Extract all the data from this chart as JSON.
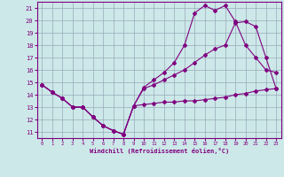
{
  "xlabel": "Windchill (Refroidissement éolien,°C)",
  "background_color": "#cce8e8",
  "line_color": "#800080",
  "grid_color": "#99aabb",
  "xlim": [
    -0.5,
    23.5
  ],
  "ylim": [
    10.5,
    21.5
  ],
  "yticks": [
    11,
    12,
    13,
    14,
    15,
    16,
    17,
    18,
    19,
    20,
    21
  ],
  "xticks": [
    0,
    1,
    2,
    3,
    4,
    5,
    6,
    7,
    8,
    9,
    10,
    11,
    12,
    13,
    14,
    15,
    16,
    17,
    18,
    19,
    20,
    21,
    22,
    23
  ],
  "line1_x": [
    0,
    1,
    2,
    3,
    4,
    5,
    6,
    7,
    8,
    9,
    10,
    11,
    12,
    13,
    14,
    15,
    16,
    17,
    18,
    19,
    20,
    21,
    22,
    23
  ],
  "line1_y": [
    14.8,
    14.2,
    13.7,
    13.0,
    13.0,
    12.2,
    11.5,
    11.1,
    10.8,
    13.1,
    13.2,
    13.3,
    13.4,
    13.4,
    13.5,
    13.5,
    13.6,
    13.7,
    13.8,
    14.0,
    14.1,
    14.3,
    14.4,
    14.5
  ],
  "line2_x": [
    0,
    1,
    2,
    3,
    4,
    5,
    6,
    7,
    8,
    9,
    10,
    11,
    12,
    13,
    14,
    15,
    16,
    17,
    18,
    19,
    20,
    21,
    22,
    23
  ],
  "line2_y": [
    14.8,
    14.2,
    13.7,
    13.0,
    13.0,
    12.2,
    11.5,
    11.1,
    10.8,
    13.1,
    14.6,
    15.2,
    15.8,
    16.6,
    18.0,
    20.6,
    21.2,
    20.8,
    21.2,
    19.9,
    18.0,
    17.0,
    16.0,
    15.8
  ],
  "line3_x": [
    0,
    1,
    2,
    3,
    4,
    5,
    6,
    7,
    8,
    9,
    10,
    11,
    12,
    13,
    14,
    15,
    16,
    17,
    18,
    19,
    20,
    21,
    22,
    23
  ],
  "line3_y": [
    14.8,
    14.2,
    13.7,
    13.0,
    13.0,
    12.2,
    11.5,
    11.1,
    10.8,
    13.1,
    14.5,
    14.8,
    15.2,
    15.6,
    16.0,
    16.6,
    17.2,
    17.7,
    18.0,
    19.8,
    19.9,
    19.5,
    17.0,
    14.5
  ]
}
